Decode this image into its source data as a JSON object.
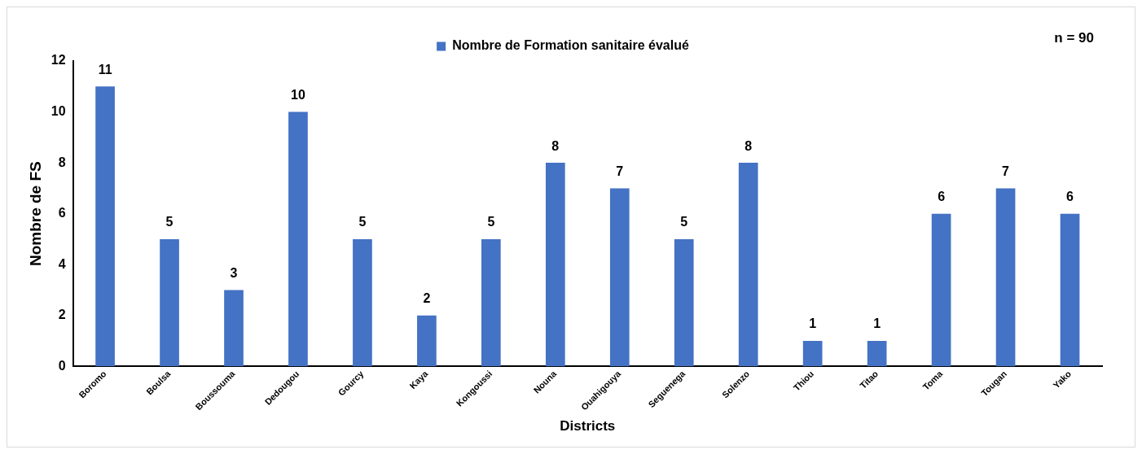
{
  "chart_data": {
    "type": "bar",
    "xlabel": "Districts",
    "ylabel": "Nombre de FS",
    "categories": [
      "Boromo",
      "Boulsa",
      "Boussouma",
      "Dedougou",
      "Gourcy",
      "Kaya",
      "Kongoussi",
      "Nouna",
      "Ouahigouya",
      "Seguenega",
      "Solenzo",
      "Thiou",
      "Titao",
      "Toma",
      "Tougan",
      "Yako"
    ],
    "series": [
      {
        "name": "Nombre de Formation sanitaire évalué",
        "color": "#4472c4",
        "values": [
          11,
          5,
          3,
          10,
          5,
          2,
          5,
          8,
          7,
          5,
          8,
          1,
          1,
          6,
          7,
          6
        ]
      }
    ],
    "ylim": [
      0,
      12
    ],
    "yticks": [
      0,
      2,
      4,
      6,
      8,
      10,
      12
    ],
    "grid": false,
    "legend": "top",
    "data_labels": true,
    "annotations": [
      "n = 90"
    ]
  }
}
